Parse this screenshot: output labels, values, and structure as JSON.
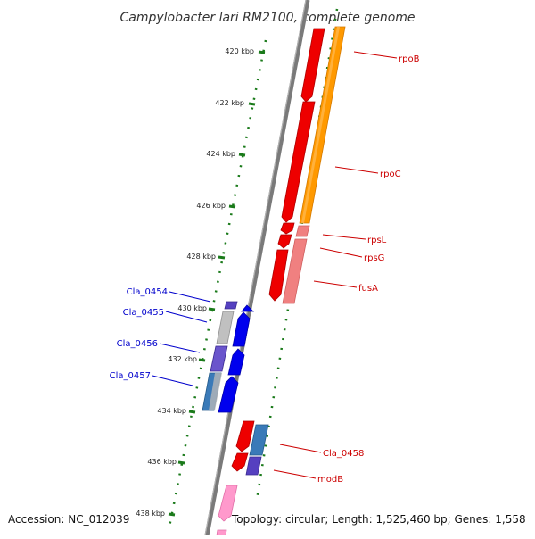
{
  "title": "Campylobacter lari RM2100, complete genome",
  "footer": {
    "accession": "Accession: NC_012039",
    "topology": "Topology: circular; Length: 1,525,460 bp; Genes: 1,558"
  },
  "ticks": [
    "420 kbp",
    "422 kbp",
    "424 kbp",
    "426 kbp",
    "428 kbp",
    "430 kbp",
    "432 kbp",
    "434 kbp",
    "436 kbp",
    "438 kbp"
  ],
  "genes_right": [
    {
      "name": "rpoB"
    },
    {
      "name": "rpoC"
    },
    {
      "name": "rpsL"
    },
    {
      "name": "rpsG"
    },
    {
      "name": "fusA"
    },
    {
      "name": "Cla_0458"
    },
    {
      "name": "modB"
    }
  ],
  "genes_left": [
    {
      "name": "Cla_0454"
    },
    {
      "name": "Cla_0455"
    },
    {
      "name": "Cla_0456"
    },
    {
      "name": "Cla_0457"
    }
  ],
  "colors": {
    "backbone": "#7f7f7f",
    "tick_dots": "#1a7a1a",
    "cds_red": "#ee0000",
    "cds_pink": "#f08080",
    "cds_orange": "#ff9900",
    "cds_blue": "#0000ee",
    "cds_steel": "#3a7ab8",
    "cds_purple": "#5540c0",
    "cds_gray": "#b8b8b8",
    "cds_magenta": "#ff99cc",
    "label_red": "#cc0000",
    "label_blue": "#0000cc"
  }
}
